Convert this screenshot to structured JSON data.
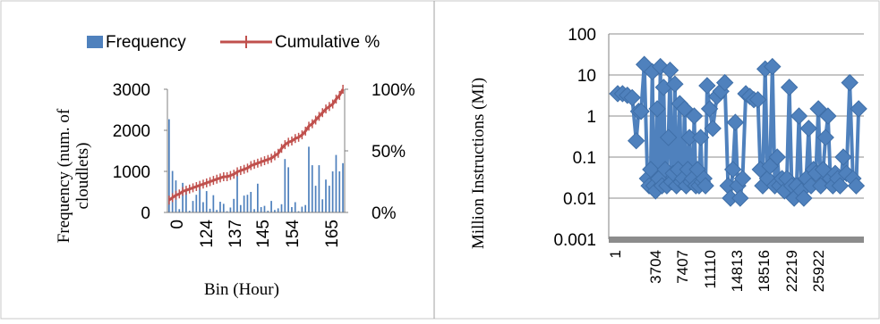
{
  "chart_data": [
    {
      "type": "bar",
      "title": "",
      "xlabel": "Bin (Hour)",
      "ylabel": "Frequency (num. of cloudlets)",
      "ylim": [
        0,
        3000
      ],
      "y_ticks": [
        "0",
        "1000",
        "2000",
        "3000"
      ],
      "y2lim": [
        0,
        100
      ],
      "y2_ticks": [
        "0%",
        "50%",
        "100%"
      ],
      "x_tick_labels": [
        "0",
        "124",
        "137",
        "145",
        "154",
        "165"
      ],
      "grid": false,
      "legend_position": "top",
      "legend": [
        {
          "label": "Frequency",
          "color": "#4f81bd"
        },
        {
          "label": "Cumulative %",
          "color": "#c0504d"
        }
      ],
      "series": [
        {
          "name": "Frequency",
          "axis": "left",
          "values": [
            2270,
            1010,
            780,
            80,
            720,
            550,
            40,
            280,
            430,
            620,
            250,
            520,
            90,
            420,
            60,
            260,
            210,
            30,
            120,
            330,
            1000,
            180,
            410,
            430,
            500,
            80,
            700,
            130,
            160,
            40,
            280,
            60,
            100,
            200,
            1300,
            1100,
            130,
            250,
            30,
            140,
            180,
            1600,
            1150,
            650,
            1150,
            320,
            800,
            650,
            1000,
            1400,
            1000,
            1200
          ]
        },
        {
          "name": "Cumulative %",
          "axis": "right",
          "values": [
            10,
            12,
            14,
            15,
            17,
            18,
            19,
            20,
            21,
            22,
            23,
            24,
            25,
            26,
            27,
            28,
            29,
            29,
            30,
            31,
            33,
            34,
            35,
            36,
            38,
            39,
            40,
            41,
            42,
            43,
            44,
            46,
            48,
            52,
            55,
            57,
            58,
            60,
            61,
            63,
            66,
            70,
            72,
            75,
            78,
            81,
            84,
            86,
            88,
            92,
            95,
            100
          ]
        }
      ]
    },
    {
      "type": "line",
      "title": "",
      "xlabel": "",
      "ylabel": "Million Instructions (MI)",
      "y_scale": "log",
      "ylim": [
        0.001,
        100
      ],
      "y_ticks": [
        "0.001",
        "0.01",
        "0.1",
        "1",
        "10",
        "100"
      ],
      "x_tick_labels": [
        "1",
        "3704",
        "7407",
        "11110",
        "14813",
        "18516",
        "22219",
        "25922"
      ],
      "grid": true,
      "marker": "diamond",
      "color": "#4f81bd",
      "series": [
        {
          "x": [
            1,
            600,
            1200,
            1800,
            2300,
            2600,
            2900,
            3300,
            3700,
            3900,
            4100,
            4300,
            4500,
            4700,
            4900,
            5100,
            5300,
            5500,
            5700,
            5900,
            6100,
            6300,
            6500,
            6700,
            6900,
            7100,
            7300,
            7500,
            7700,
            7900,
            8100,
            8300,
            8500,
            8700,
            8900,
            9100,
            9300,
            9500,
            9700,
            9900,
            10100,
            10300,
            10500,
            10700,
            10900,
            11100,
            11400,
            11800,
            12300,
            12800,
            13300,
            13700,
            14000,
            14300,
            14600,
            14900,
            15200,
            15500,
            15900,
            16400,
            16900,
            17400,
            17700,
            18000,
            18300,
            18600,
            18900,
            19200,
            19500,
            19800,
            20100,
            20400,
            20700,
            21000,
            21300,
            21600,
            21900,
            22200,
            22500,
            22800,
            23100,
            23400,
            23700,
            24000,
            24300,
            24600,
            24900,
            25200,
            25500,
            25800,
            26100,
            26400,
            26700,
            27000,
            27300,
            27600,
            28000,
            28400,
            28800,
            29200,
            29600,
            29900
          ],
          "values": [
            3.5,
            3.5,
            3.2,
            2.8,
            0.25,
            1.3,
            1.3,
            18,
            0.03,
            0.02,
            0.05,
            12,
            0.02,
            0.015,
            1.5,
            0.03,
            16,
            0.02,
            5,
            0.05,
            0.02,
            0.3,
            13,
            0.025,
            0.04,
            6,
            0.02,
            0.05,
            2,
            0.025,
            0.03,
            1.5,
            0.02,
            0.05,
            0.3,
            0.025,
            0.03,
            1,
            0.02,
            0.05,
            0.02,
            0.3,
            0.025,
            0.03,
            0.02,
            5.5,
            1.5,
            0.5,
            3,
            4,
            6.5,
            0.02,
            0.01,
            0.05,
            0.7,
            0.02,
            0.01,
            0.03,
            3.5,
            3,
            2.5,
            2.5,
            0.05,
            0.02,
            14,
            0.03,
            0.06,
            16,
            0.02,
            0.1,
            0.02,
            0.03,
            0.015,
            0.03,
            5,
            0.02,
            0.01,
            0.02,
            1,
            0.015,
            0.01,
            0.03,
            0.5,
            0.02,
            0.05,
            0.04,
            1.5,
            0.02,
            0.05,
            0.3,
            1,
            0.03,
            0.02,
            0.04,
            0.03,
            0.02,
            0.1,
            0.04,
            6.5,
            0.03,
            0.02,
            1.5
          ]
        }
      ]
    }
  ]
}
